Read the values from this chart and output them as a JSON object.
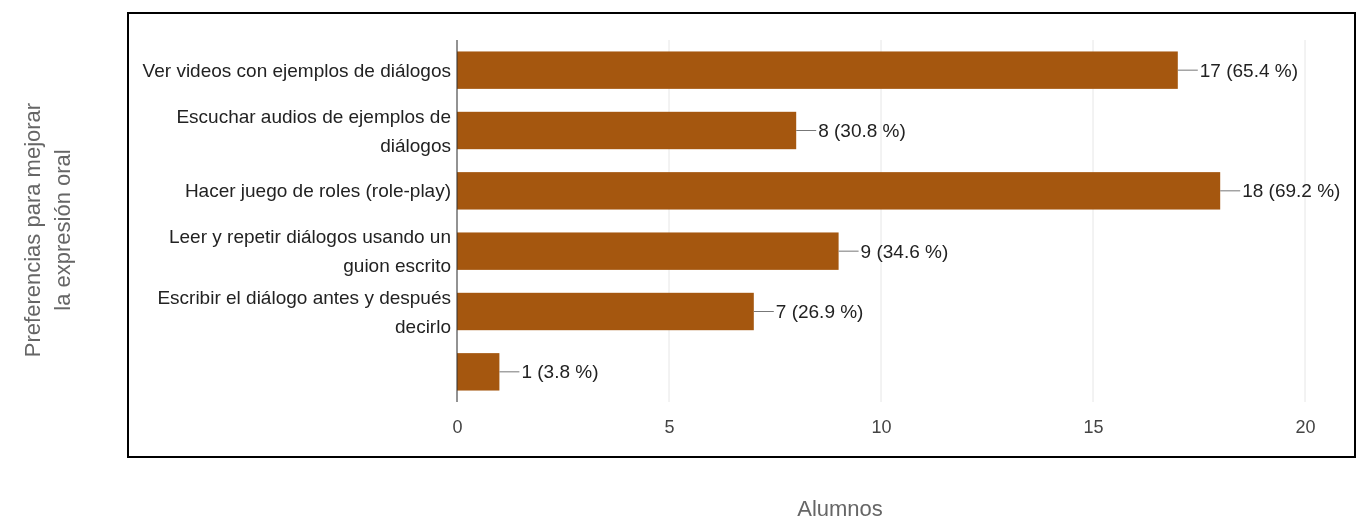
{
  "chart_data": {
    "type": "bar",
    "orientation": "horizontal",
    "ylabel": "Preferencias para mejorar la expresión oral",
    "xlabel": "Alumnos",
    "categories": [
      "Ver videos con ejemplos de diálogos",
      "Escuchar audios de ejemplos de diálogos",
      "Hacer juego de roles (role-play)",
      "Leer y repetir diálogos usando un guion escrito",
      "Escribir el diálogo antes y después decirlo",
      null
    ],
    "values": [
      17,
      8,
      18,
      9,
      7,
      1
    ],
    "value_labels": [
      "17 (65.4 %)",
      "8 (30.8 %)",
      "18 (69.2 %)",
      "9 (34.6 %)",
      "7 (26.9 %)",
      "1 (3.8 %)"
    ],
    "color": "#a5570f",
    "xlim": [
      0,
      20
    ],
    "xticks": [
      0,
      5,
      10,
      15,
      20
    ],
    "grid": "x"
  }
}
